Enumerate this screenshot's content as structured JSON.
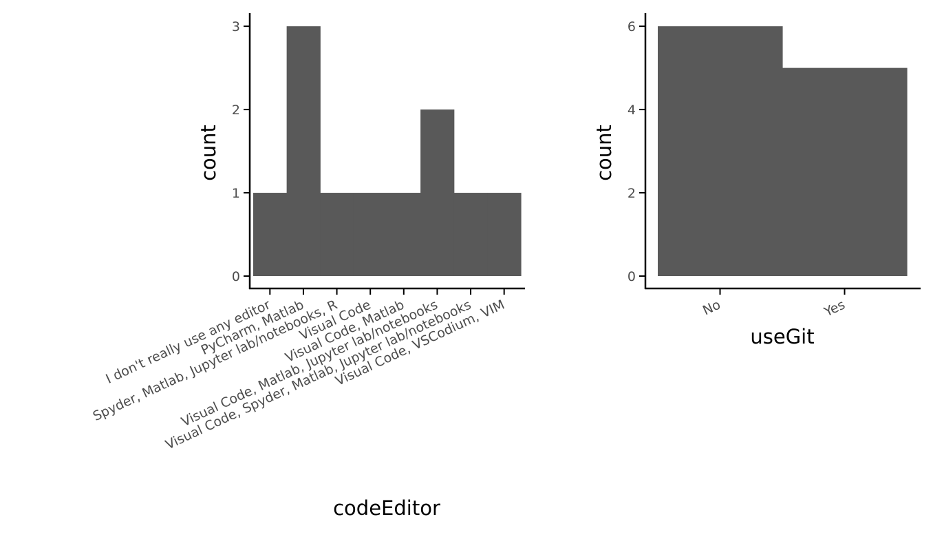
{
  "chart_data": [
    {
      "type": "bar",
      "categories": [
        "I don't really use any editor",
        "PyCharm, Matlab",
        "Spyder, Matlab, Jupyter lab/notebooks, R",
        "Visual Code",
        "Visual Code, Matlab",
        "Visual Code, Matlab, Jupyter lab/notebooks",
        "Visual Code, Spyder, Matlab, Jupyter lab/notebooks",
        "Visual Code, VSCodium, VIM"
      ],
      "values": [
        1,
        3,
        1,
        1,
        1,
        2,
        1,
        1
      ],
      "yticks": [
        "0",
        "1",
        "2",
        "3"
      ],
      "xlabel": "codeEditor",
      "ylabel": "count",
      "ylim": [
        0,
        3.15
      ],
      "bar_color": "#595959",
      "grid": false
    },
    {
      "type": "bar",
      "categories": [
        "No",
        "Yes"
      ],
      "values": [
        6,
        5
      ],
      "yticks": [
        "0",
        "2",
        "4",
        "6"
      ],
      "xlabel": "useGit",
      "ylabel": "count",
      "ylim": [
        0,
        6.3
      ],
      "bar_color": "#595959",
      "grid": false
    }
  ]
}
